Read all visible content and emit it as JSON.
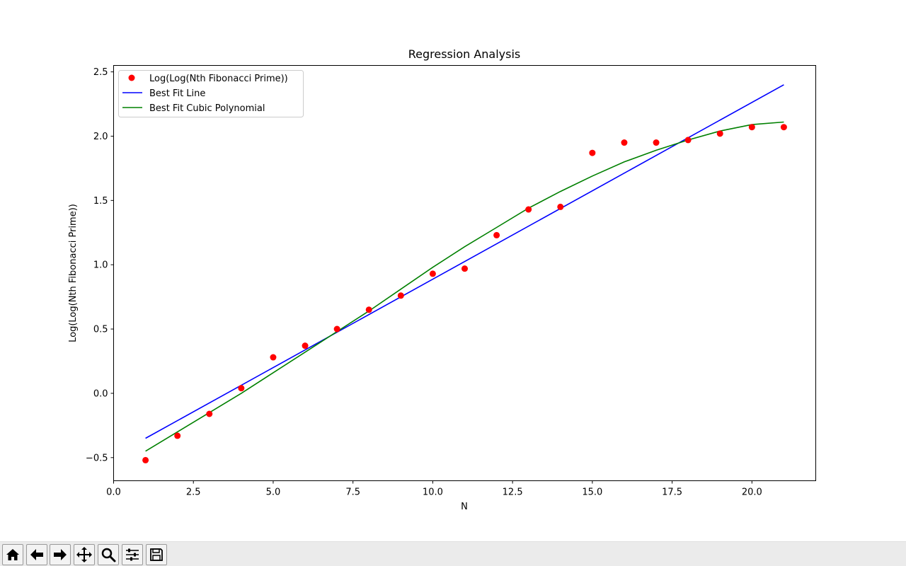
{
  "chart_data": {
    "type": "scatter",
    "title": "Regression Analysis",
    "xlabel": "N",
    "ylabel": "Log(Log(Nth Fibonacci Prime))",
    "xlim": [
      0.0,
      22.0
    ],
    "ylim": [
      -0.68,
      2.55
    ],
    "xticks": [
      0.0,
      2.5,
      5.0,
      7.5,
      10.0,
      12.5,
      15.0,
      17.5,
      20.0
    ],
    "xtick_labels": [
      "0.0",
      "2.5",
      "5.0",
      "7.5",
      "10.0",
      "12.5",
      "15.0",
      "17.5",
      "20.0"
    ],
    "yticks": [
      -0.5,
      0.0,
      0.5,
      1.0,
      1.5,
      2.0,
      2.5
    ],
    "ytick_labels": [
      "−0.5",
      "0.0",
      "0.5",
      "1.0",
      "1.5",
      "2.0",
      "2.5"
    ],
    "grid": false,
    "legend_position": "top-left",
    "series": [
      {
        "name": "Log(Log(Nth Fibonacci Prime))",
        "kind": "scatter",
        "color": "#ff0000",
        "x": [
          1,
          2,
          3,
          4,
          5,
          6,
          7,
          8,
          9,
          10,
          11,
          12,
          13,
          14,
          15,
          16,
          17,
          18,
          19,
          20,
          21
        ],
        "y": [
          -0.52,
          -0.33,
          -0.16,
          0.04,
          0.28,
          0.37,
          0.5,
          0.65,
          0.76,
          0.93,
          0.97,
          1.23,
          1.43,
          1.45,
          1.87,
          1.95,
          1.95,
          1.97,
          2.02,
          2.07,
          2.07
        ]
      },
      {
        "name": "Best Fit Line",
        "kind": "line",
        "color": "#0000ff",
        "x": [
          1,
          21
        ],
        "y": [
          -0.35,
          2.4
        ]
      },
      {
        "name": "Best Fit Cubic Polynomial",
        "kind": "line",
        "color": "#008000",
        "x": [
          1,
          2,
          3,
          4,
          5,
          6,
          7,
          8,
          9,
          10,
          11,
          12,
          13,
          14,
          15,
          16,
          17,
          18,
          19,
          20,
          21
        ],
        "y": [
          -0.45,
          -0.3,
          -0.15,
          0.0,
          0.16,
          0.32,
          0.48,
          0.64,
          0.81,
          0.98,
          1.14,
          1.29,
          1.44,
          1.57,
          1.69,
          1.8,
          1.89,
          1.97,
          2.04,
          2.09,
          2.11
        ]
      }
    ]
  },
  "toolbar": {
    "buttons": [
      {
        "name": "home-button",
        "icon": "home-icon"
      },
      {
        "name": "back-button",
        "icon": "arrow-left-icon"
      },
      {
        "name": "forward-button",
        "icon": "arrow-right-icon"
      },
      {
        "name": "pan-button",
        "icon": "move-icon"
      },
      {
        "name": "zoom-button",
        "icon": "magnifier-icon"
      },
      {
        "name": "configure-subplots-button",
        "icon": "sliders-icon"
      },
      {
        "name": "save-button",
        "icon": "floppy-disk-icon"
      }
    ]
  }
}
